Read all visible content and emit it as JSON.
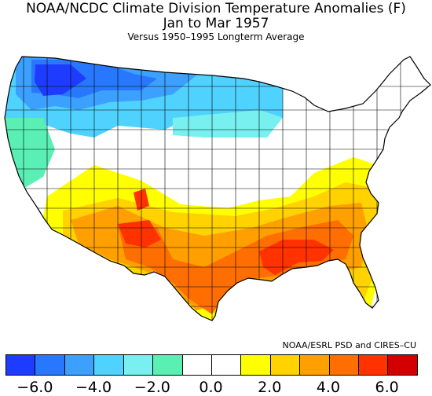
{
  "title": {
    "line1": "NOAA/NCDC Climate Division Temperature Anomalies (F)",
    "line2": "Jan to Mar 1957",
    "line3": "Versus 1950–1995 Longterm Average"
  },
  "credit": "NOAA/ESRL PSD and CIRES–CU",
  "colorbar": {
    "colors": [
      "#1e3cff",
      "#2878ff",
      "#3ca0ff",
      "#50d2ff",
      "#78f0f0",
      "#5af0b4",
      "#ffffff",
      "#ffffff",
      "#ffff00",
      "#ffd200",
      "#ffa000",
      "#ff6e00",
      "#ff3200",
      "#d20000"
    ],
    "tick_labels": [
      "−6.0",
      "−4.0",
      "−2.0",
      "0.0",
      "2.0",
      "4.0",
      "6.0"
    ]
  },
  "map_colors": {
    "cold3": "#1e3cff",
    "cold2": "#2878ff",
    "cold1": "#3ca0ff",
    "cool": "#50d2ff",
    "cool2": "#78f0f0",
    "mint": "#5af0b4",
    "neutral": "#ffffff",
    "warm1": "#ffff00",
    "warm2": "#ffd200",
    "warm3": "#ffa000",
    "warm4": "#ff6e00",
    "warm5": "#ff3200"
  }
}
